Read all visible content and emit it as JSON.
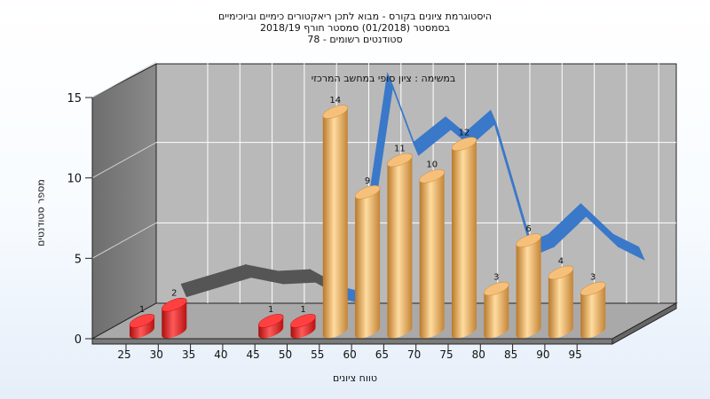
{
  "chart_data": {
    "type": "bar",
    "title_lines": [
      "היסטוגרמת ציונים בקורס - מבוא לתכן ריאקטורים כימיים וביוכימיים",
      "בסמסטר (01/2018) סמסטר חורף 2018/19",
      "סטודנטים רשומים - 78"
    ],
    "subtitle": "במשימה : ציון סופי במחשב המרכזי",
    "xlabel": "טווח ציונים",
    "ylabel": "מספר סטודנטים",
    "categories": [
      "25",
      "30",
      "35",
      "40",
      "45",
      "50",
      "55",
      "60",
      "65",
      "70",
      "75",
      "80",
      "85",
      "90",
      "95"
    ],
    "series": [
      {
        "values": [
          1,
          2,
          0,
          0,
          1,
          1,
          14,
          9,
          11,
          10,
          12,
          3,
          6,
          4,
          3
        ]
      }
    ],
    "data_labels": [
      "1",
      "2",
      "",
      "",
      "1",
      "1",
      "14",
      "9",
      "11",
      "10",
      "12",
      "3",
      "6",
      "4",
      "3"
    ],
    "yticks": [
      0,
      5,
      10,
      15
    ],
    "ylim": [
      0,
      15
    ],
    "grid": true,
    "fail_color": "#e01818",
    "pass_color": "#e8a84a",
    "curve_color": "#3a78c9",
    "curve_fail_color": "#555555",
    "curve": [
      {
        "x": 30,
        "y": 2.4
      },
      {
        "x": 40,
        "y": 3.6
      },
      {
        "x": 45,
        "y": 3.2
      },
      {
        "x": 50,
        "y": 3.3
      },
      {
        "x": 55,
        "y": 2.2
      },
      {
        "x": 57,
        "y": 2.0
      },
      {
        "x": 62,
        "y": 15.5
      },
      {
        "x": 66,
        "y": 11.2
      },
      {
        "x": 71,
        "y": 12.8
      },
      {
        "x": 74,
        "y": 11.8
      },
      {
        "x": 78,
        "y": 13.2
      },
      {
        "x": 84,
        "y": 5.0
      },
      {
        "x": 87,
        "y": 5.5
      },
      {
        "x": 92,
        "y": 7.4
      },
      {
        "x": 97,
        "y": 5.5
      },
      {
        "x": 101,
        "y": 4.7
      }
    ]
  }
}
